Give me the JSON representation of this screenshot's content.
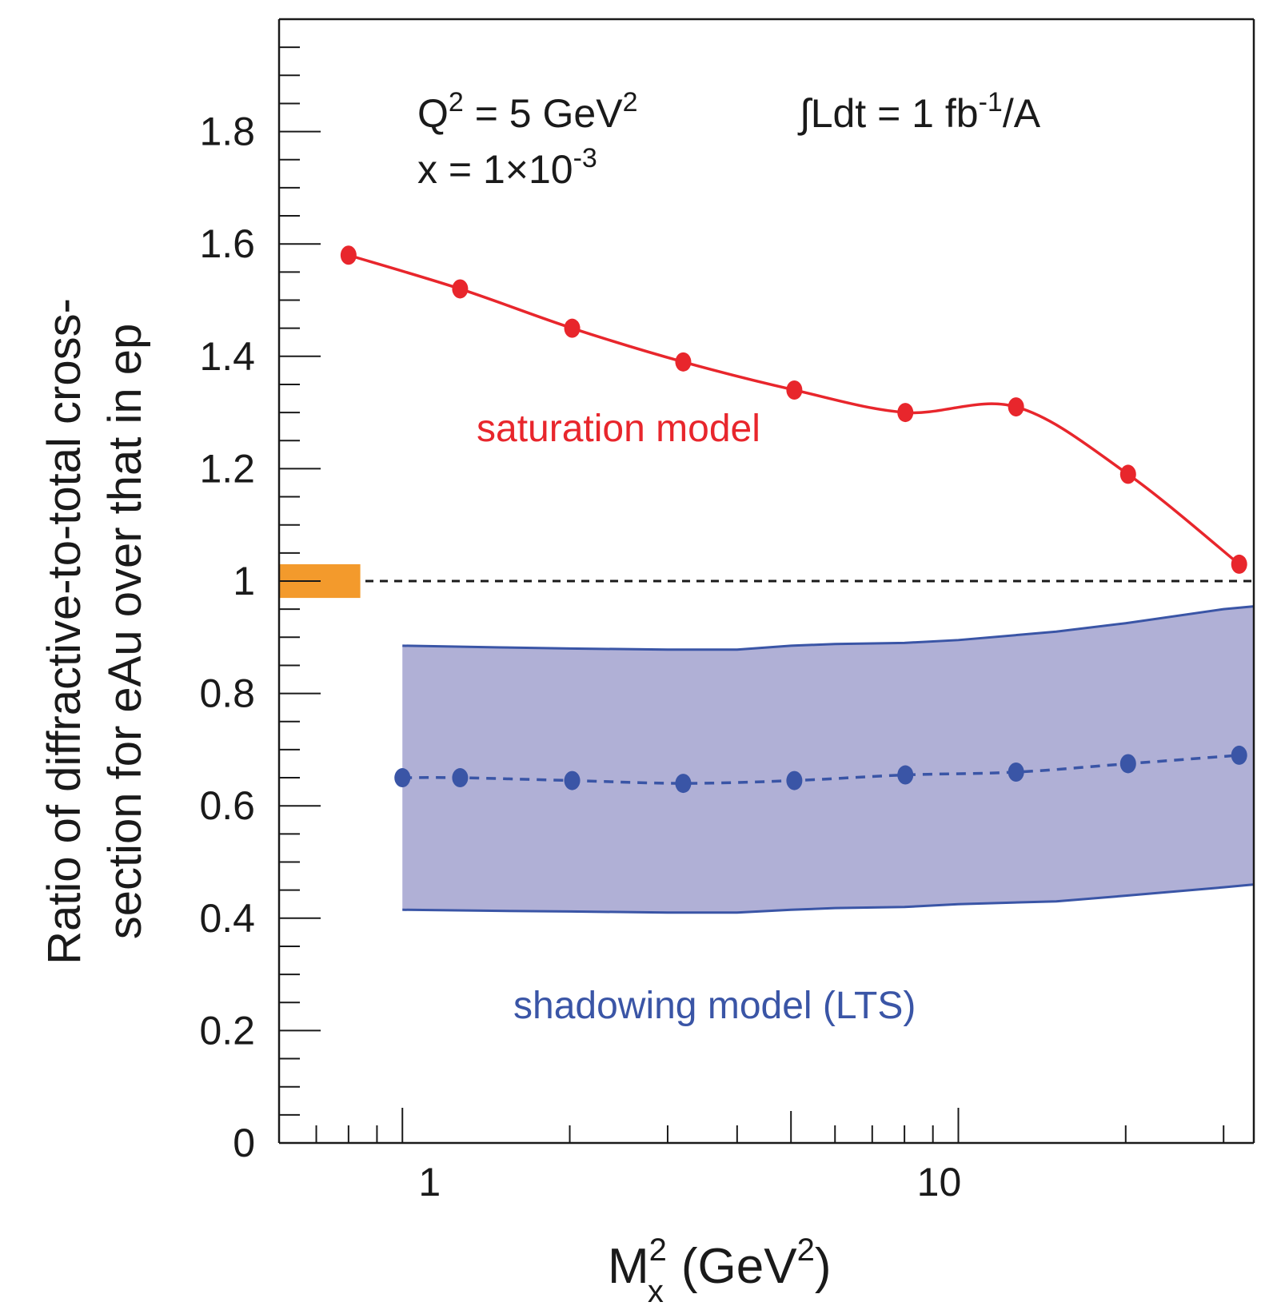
{
  "chart_data": {
    "type": "line",
    "xscale": "log",
    "xlim": [
      0.6,
      34
    ],
    "ylim": [
      0,
      2
    ],
    "x_ticks": [
      1,
      10
    ],
    "x_tick_labels": [
      "1",
      "10"
    ],
    "y_ticks": [
      0,
      0.2,
      0.4,
      0.6,
      0.8,
      1,
      1.2,
      1.4,
      1.6,
      1.8
    ],
    "y_tick_labels": [
      "0",
      "0.2",
      "0.4",
      "0.6",
      "0.8",
      "1",
      "1.2",
      "1.4",
      "1.6",
      "1.8"
    ],
    "ylabel_line1": "Ratio of diffractive-to-total cross-",
    "ylabel_line2": "section for eAu over that in ep",
    "xlabel_main": "M",
    "xlabel_sub": "x",
    "xlabel_sup": "2",
    "xlabel_unit": "(GeV",
    "xlabel_unit_sup": "2",
    "xlabel_close": ")",
    "annotations": {
      "q2_prefix": "Q",
      "q2_sup": "2",
      "q2_mid": " = 5 GeV",
      "q2_sup2": "2",
      "x_prefix": "x = 1×10",
      "x_sup": "-3",
      "lumi_prefix": "∫Ldt = 1 fb",
      "lumi_sup": "-1",
      "lumi_suffix": "/A"
    },
    "reference_line": {
      "y": 1.0,
      "style": "dashed",
      "color": "#1a1a1a"
    },
    "reference_marker": {
      "x_range": [
        0.6,
        0.84
      ],
      "y_range": [
        0.97,
        1.03
      ],
      "color": "#f39a2c"
    },
    "series": [
      {
        "name": "saturation model",
        "color": "#e8262c",
        "x": [
          0.8,
          1.27,
          2.02,
          3.2,
          5.07,
          8.03,
          12.7,
          20.2,
          32.0
        ],
        "y": [
          1.58,
          1.52,
          1.45,
          1.39,
          1.34,
          1.3,
          1.31,
          1.19,
          1.03
        ]
      },
      {
        "name": "shadowing model (LTS)",
        "color": "#3a55a6",
        "line_style": "dashed",
        "x": [
          1.0,
          1.27,
          2.02,
          3.2,
          5.07,
          8.03,
          12.7,
          20.2,
          32.0
        ],
        "y": [
          0.65,
          0.65,
          0.645,
          0.64,
          0.645,
          0.655,
          0.66,
          0.675,
          0.69
        ],
        "band": {
          "fill": "#b0b0d6",
          "x": [
            1.0,
            1.5,
            2.0,
            3.0,
            4.0,
            5.0,
            6.0,
            8.0,
            10.0,
            15.0,
            20.0,
            30.0,
            34.0
          ],
          "upper": [
            0.885,
            0.882,
            0.88,
            0.878,
            0.878,
            0.885,
            0.888,
            0.89,
            0.895,
            0.91,
            0.925,
            0.95,
            0.955
          ],
          "lower": [
            0.415,
            0.413,
            0.412,
            0.41,
            0.41,
            0.415,
            0.418,
            0.42,
            0.425,
            0.43,
            0.44,
            0.455,
            0.46
          ]
        }
      }
    ]
  }
}
